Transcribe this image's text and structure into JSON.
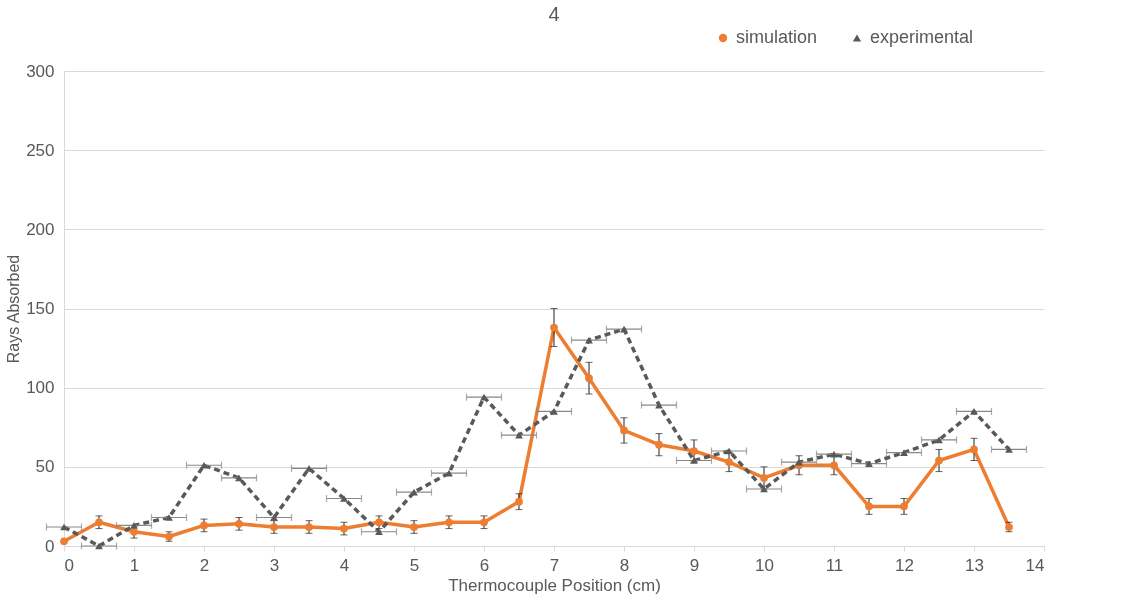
{
  "chart_data": {
    "type": "line",
    "title": "4",
    "xlabel": "Thermocouple Position (cm)",
    "ylabel": "Rays Absorbed",
    "xlim": [
      0,
      14
    ],
    "xticks": [
      0,
      1,
      2,
      3,
      4,
      5,
      6,
      7,
      8,
      9,
      10,
      11,
      12,
      13,
      14
    ],
    "ylim": [
      0,
      300
    ],
    "yticks": [
      0,
      50,
      100,
      150,
      200,
      250,
      300
    ],
    "grid": "y",
    "legend": "top right",
    "x": [
      0,
      0.5,
      1,
      1.5,
      2,
      2.5,
      3,
      3.5,
      4,
      4.5,
      5,
      5.5,
      6,
      6.5,
      7,
      7.5,
      8,
      8.5,
      9,
      9.5,
      10,
      10.5,
      11,
      11.5,
      12,
      12.5,
      13,
      13.5
    ],
    "series": [
      {
        "name": "simulation",
        "color": "#ed7d31",
        "marker": "circle",
        "line_style": "solid",
        "values": [
          3,
          15,
          9,
          6,
          13,
          14,
          12,
          12,
          11,
          15,
          12,
          15,
          15,
          28,
          138,
          106,
          73,
          64,
          60,
          53,
          43,
          51,
          51,
          25,
          25,
          54,
          61,
          12
        ],
        "errors": [
          null,
          4,
          4,
          3,
          4,
          4,
          4,
          4,
          4,
          4,
          4,
          4,
          4,
          5,
          12,
          10,
          8,
          7,
          7,
          6,
          7,
          6,
          6,
          5,
          5,
          7,
          7,
          3
        ]
      },
      {
        "name": "experimental",
        "color": "#595959",
        "marker": "triangle",
        "line_style": "dashed",
        "values": [
          12,
          0,
          13,
          18,
          51,
          43,
          18,
          49,
          30,
          9,
          34,
          46,
          94,
          70,
          85,
          130,
          137,
          89,
          54,
          60,
          36,
          53,
          58,
          52,
          59,
          67,
          85,
          61
        ],
        "xerrors": [
          0.25,
          0.25,
          0.25,
          0.25,
          0.25,
          0.25,
          0.25,
          0.25,
          0.25,
          0.25,
          0.25,
          0.25,
          0.25,
          0.25,
          0.25,
          0.25,
          0.25,
          0.25,
          0.25,
          0.25,
          0.25,
          0.25,
          0.25,
          0.25,
          0.25,
          0.25,
          0.25,
          0.25
        ]
      }
    ]
  }
}
